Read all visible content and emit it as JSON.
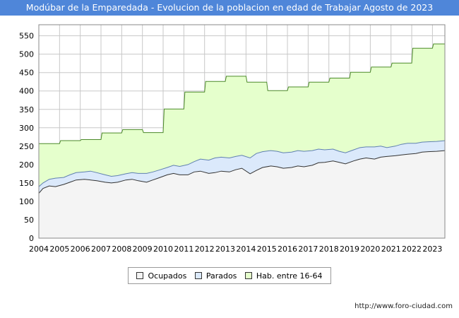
{
  "title": "Modúbar de la Emparedada - Evolucion de la poblacion en edad de Trabajar Agosto de 2023",
  "source": "http://www.foro-ciudad.com",
  "colors": {
    "title_bg": "#4f86d9",
    "hab_fill": "#e5ffcc",
    "hab_line": "#4c8a2a",
    "parados_fill": "#dbe9fb",
    "parados_line": "#6080b0",
    "ocupados_fill": "#f4f4f4",
    "ocupados_line": "#333333",
    "grid": "#c8c8c8"
  },
  "chart_data": {
    "type": "area",
    "title": "Modúbar de la Emparedada - Evolucion de la poblacion en edad de Trabajar Agosto de 2023",
    "xlabel": "",
    "ylabel": "",
    "xlim": [
      2004,
      2023.6
    ],
    "ylim": [
      0,
      580
    ],
    "grid": true,
    "legend_position": "bottom",
    "x_ticks": [
      "2004",
      "2005",
      "2006",
      "2007",
      "2008",
      "2009",
      "2010",
      "2011",
      "2012",
      "2013",
      "2014",
      "2015",
      "2016",
      "2017",
      "2018",
      "2019",
      "2020",
      "2021",
      "2022",
      "2023"
    ],
    "y_ticks": [
      0,
      50,
      100,
      150,
      200,
      250,
      300,
      350,
      400,
      450,
      500,
      550
    ],
    "legend": [
      "Ocupados",
      "Parados",
      "Hab. entre 16-64"
    ],
    "series": [
      {
        "name": "Hab. entre 16-64",
        "years": [
          2004,
          2005,
          2006,
          2007,
          2008,
          2009,
          2010,
          2011,
          2012,
          2013,
          2014,
          2015,
          2016,
          2017,
          2018,
          2019,
          2020,
          2021,
          2022,
          2023
        ],
        "values": [
          257,
          265,
          268,
          286,
          295,
          287,
          351,
          397,
          426,
          440,
          424,
          401,
          411,
          424,
          435,
          451,
          465,
          476,
          516,
          528
        ]
      },
      {
        "name": "Parados",
        "x": [
          2004,
          2004.2,
          2004.5,
          2004.8,
          2005.2,
          2005.5,
          2005.8,
          2006.2,
          2006.5,
          2006.8,
          2007.2,
          2007.5,
          2007.8,
          2008.2,
          2008.5,
          2008.8,
          2009.2,
          2009.5,
          2009.8,
          2010.2,
          2010.5,
          2010.8,
          2011.2,
          2011.5,
          2011.8,
          2012.2,
          2012.5,
          2012.8,
          2013.2,
          2013.5,
          2013.8,
          2014.2,
          2014.5,
          2014.8,
          2015.2,
          2015.5,
          2015.8,
          2016.2,
          2016.5,
          2016.8,
          2017.2,
          2017.5,
          2017.8,
          2018.2,
          2018.5,
          2018.8,
          2019.2,
          2019.5,
          2019.8,
          2020.2,
          2020.5,
          2020.8,
          2021.2,
          2021.5,
          2021.8,
          2022.2,
          2022.5,
          2022.8,
          2023.2,
          2023.6
        ],
        "values": [
          140,
          150,
          160,
          163,
          165,
          172,
          178,
          180,
          182,
          178,
          172,
          168,
          170,
          175,
          178,
          176,
          176,
          180,
          185,
          192,
          198,
          195,
          200,
          208,
          215,
          212,
          218,
          220,
          218,
          222,
          225,
          218,
          230,
          235,
          238,
          236,
          232,
          234,
          238,
          236,
          238,
          242,
          240,
          242,
          236,
          232,
          240,
          246,
          248,
          248,
          250,
          246,
          250,
          255,
          258,
          258,
          261,
          262,
          263,
          265
        ]
      },
      {
        "name": "Ocupados",
        "x": [
          2004,
          2004.2,
          2004.5,
          2004.8,
          2005.2,
          2005.5,
          2005.8,
          2006.2,
          2006.5,
          2006.8,
          2007.2,
          2007.5,
          2007.8,
          2008.2,
          2008.5,
          2008.8,
          2009.2,
          2009.5,
          2009.8,
          2010.2,
          2010.5,
          2010.8,
          2011.2,
          2011.5,
          2011.8,
          2012.2,
          2012.5,
          2012.8,
          2013.2,
          2013.5,
          2013.8,
          2014.2,
          2014.5,
          2014.8,
          2015.2,
          2015.5,
          2015.8,
          2016.2,
          2016.5,
          2016.8,
          2017.2,
          2017.5,
          2017.8,
          2018.2,
          2018.5,
          2018.8,
          2019.2,
          2019.5,
          2019.8,
          2020.2,
          2020.5,
          2020.8,
          2021.2,
          2021.5,
          2021.8,
          2022.2,
          2022.5,
          2022.8,
          2023.2,
          2023.6
        ],
        "values": [
          122,
          135,
          142,
          140,
          146,
          152,
          158,
          160,
          158,
          156,
          152,
          150,
          152,
          158,
          160,
          156,
          152,
          158,
          164,
          172,
          176,
          172,
          172,
          180,
          182,
          176,
          178,
          182,
          180,
          186,
          190,
          175,
          184,
          192,
          196,
          194,
          190,
          192,
          196,
          194,
          198,
          205,
          206,
          210,
          206,
          202,
          210,
          215,
          218,
          215,
          220,
          222,
          224,
          226,
          228,
          230,
          234,
          235,
          236,
          238
        ]
      }
    ]
  }
}
